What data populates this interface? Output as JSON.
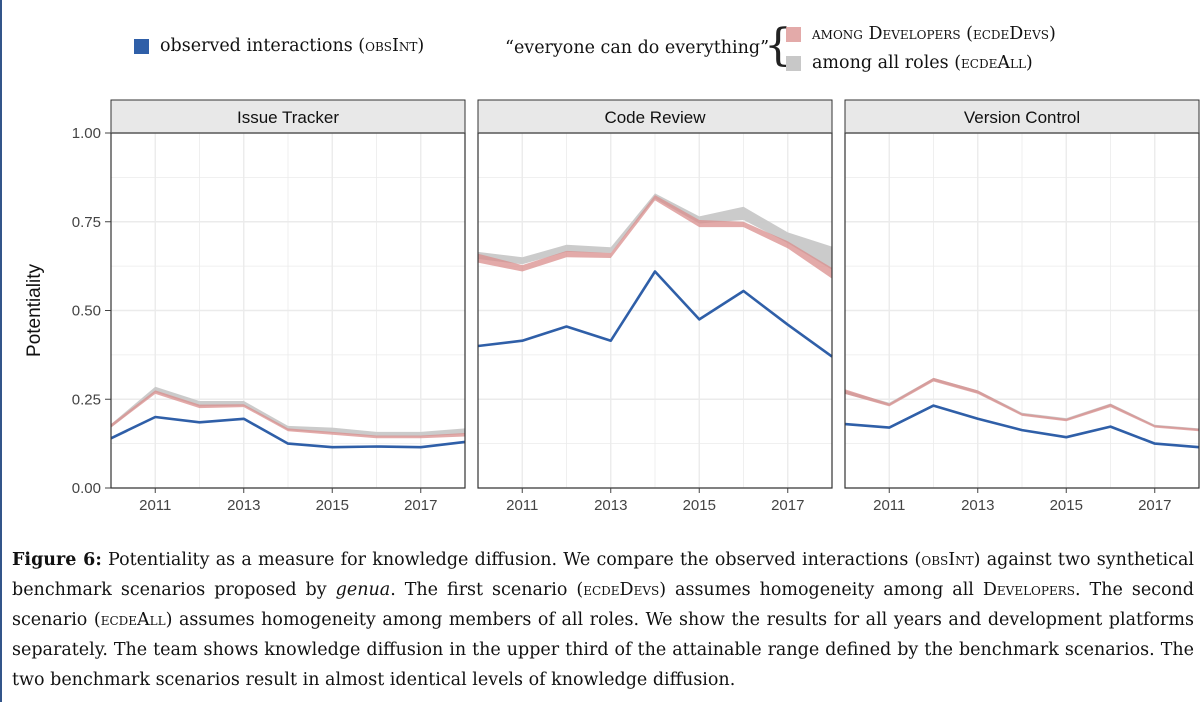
{
  "legend": {
    "observed_label": "observed interactions",
    "observed_code": "obsInt",
    "scenario_quote": "“everyone can do everything”",
    "dev_label": "among Developers",
    "dev_code": "ecdeDevs",
    "all_label": "among all roles",
    "all_code": "ecdeAll"
  },
  "colors": {
    "obsInt": "#2f5fa8",
    "ecdeDevs": "#d98e8c",
    "ecdeAll": "#c8c8c8",
    "panel_strip": "#e8e8e8",
    "grid": "#ebebeb"
  },
  "chart_data": {
    "type": "line",
    "ylabel": "Potentiality",
    "ylim": [
      0,
      1
    ],
    "yticks": [
      "0.00",
      "0.25",
      "0.50",
      "0.75",
      "1.00"
    ],
    "xlim": [
      2010,
      2018
    ],
    "xticks": [
      "2011",
      "2013",
      "2015",
      "2017"
    ],
    "x": [
      2010,
      2011,
      2012,
      2013,
      2014,
      2015,
      2016,
      2017,
      2018
    ],
    "panels": [
      {
        "title": "Issue Tracker",
        "series": [
          {
            "name": "obsInt",
            "values": [
              0.14,
              0.2,
              0.185,
              0.195,
              0.125,
              0.115,
              0.117,
              0.115,
              0.13
            ]
          },
          {
            "name": "ecdeDevs",
            "low": [
              0.17,
              0.265,
              0.225,
              0.228,
              0.16,
              0.15,
              0.14,
              0.14,
              0.145
            ],
            "high": [
              0.18,
              0.275,
              0.235,
              0.236,
              0.168,
              0.158,
              0.148,
              0.148,
              0.155
            ]
          },
          {
            "name": "ecdeAll",
            "low": [
              0.17,
              0.27,
              0.23,
              0.232,
              0.163,
              0.155,
              0.145,
              0.145,
              0.152
            ],
            "high": [
              0.18,
              0.285,
              0.245,
              0.245,
              0.175,
              0.17,
              0.158,
              0.158,
              0.168
            ]
          }
        ]
      },
      {
        "title": "Code Review",
        "series": [
          {
            "name": "obsInt",
            "values": [
              0.4,
              0.415,
              0.455,
              0.415,
              0.61,
              0.475,
              0.555,
              0.46,
              0.37
            ]
          },
          {
            "name": "ecdeDevs",
            "low": [
              0.635,
              0.61,
              0.65,
              0.648,
              0.81,
              0.735,
              0.735,
              0.675,
              0.59
            ],
            "high": [
              0.66,
              0.628,
              0.668,
              0.662,
              0.825,
              0.755,
              0.75,
              0.695,
              0.62
            ]
          },
          {
            "name": "ecdeAll",
            "low": [
              0.645,
              0.63,
              0.665,
              0.662,
              0.815,
              0.745,
              0.755,
              0.69,
              0.615
            ],
            "high": [
              0.665,
              0.65,
              0.685,
              0.678,
              0.83,
              0.765,
              0.792,
              0.72,
              0.68
            ]
          }
        ]
      },
      {
        "title": "Version Control",
        "series": [
          {
            "name": "obsInt",
            "values": [
              0.18,
              0.17,
              0.232,
              0.195,
              0.163,
              0.143,
              0.173,
              0.125,
              0.115
            ]
          },
          {
            "name": "ecdeDevs",
            "low": [
              0.265,
              0.23,
              0.3,
              0.265,
              0.203,
              0.188,
              0.228,
              0.17,
              0.16
            ],
            "high": [
              0.278,
              0.238,
              0.31,
              0.275,
              0.21,
              0.195,
              0.237,
              0.177,
              0.167
            ]
          },
          {
            "name": "ecdeAll",
            "low": [
              0.265,
              0.232,
              0.302,
              0.267,
              0.205,
              0.19,
              0.23,
              0.172,
              0.162
            ],
            "high": [
              0.275,
              0.24,
              0.31,
              0.275,
              0.212,
              0.197,
              0.238,
              0.178,
              0.168
            ]
          }
        ]
      }
    ]
  },
  "caption": {
    "label": "Figure 6:",
    "t1": " Potentiality as a measure for knowledge diffusion. We compare the observed interactions (",
    "c1": "obsInt",
    "t2": ") against two synthetical benchmark scenarios proposed by ",
    "em": "genua",
    "t3": ". The first scenario (",
    "c2": "ecdeDevs",
    "t4": ") assumes homogeneity among all ",
    "c3": "Developers",
    "t5": ". The second scenario (",
    "c4": "ecdeAll",
    "t6": ") assumes homogeneity among members of all roles. We show the results for all years and development platforms separately. The team shows knowledge diffusion in the upper third of the attainable range defined by the benchmark scenarios. The two benchmark scenarios result in almost identical levels of knowledge diffusion."
  }
}
